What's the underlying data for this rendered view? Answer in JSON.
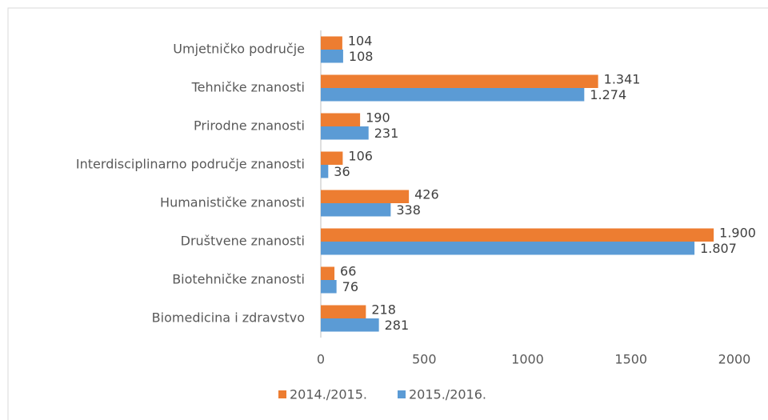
{
  "chart_data": {
    "type": "bar",
    "orientation": "horizontal",
    "categories": [
      "Umjetničko područje",
      "Tehničke znanosti",
      "Prirodne znanosti",
      "Interdisciplinarno područje znanosti",
      "Humanističke znanosti",
      "Društvene znanosti",
      "Biotehničke znanosti",
      "Biomedicina i zdravstvo"
    ],
    "series": [
      {
        "name": "2014./2015.",
        "color": "#ed7d31",
        "values": [
          104,
          1341,
          190,
          106,
          426,
          1900,
          66,
          218
        ],
        "value_labels": [
          "104",
          "1.341",
          "190",
          "106",
          "426",
          "1.900",
          "66",
          "218"
        ]
      },
      {
        "name": "2015./2016.",
        "color": "#5b9bd5",
        "values": [
          108,
          1274,
          231,
          36,
          338,
          1807,
          76,
          281
        ],
        "value_labels": [
          "108",
          "1.274",
          "231",
          "36",
          "338",
          "1.807",
          "76",
          "281"
        ]
      }
    ],
    "xlim": [
      0,
      2000
    ],
    "xticks": [
      0,
      500,
      1000,
      1500,
      2000
    ],
    "legend": "bottom"
  }
}
